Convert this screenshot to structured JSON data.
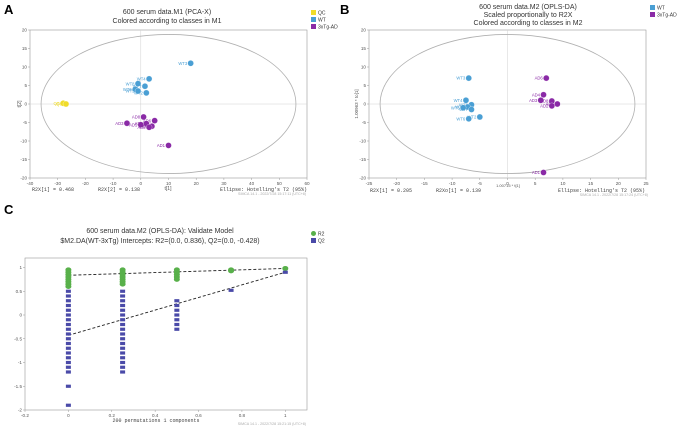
{
  "colors": {
    "qc": "#f0dc2a",
    "wt": "#4a9fd4",
    "ad": "#8a2aa6",
    "r2": "#58b04a",
    "q2": "#4a4aa8",
    "axis": "#6a6a6a",
    "ellipse": "#b0b0b0"
  },
  "chart_data": [
    {
      "panel": "A",
      "type": "scatter",
      "title": "600 serum data.M1 (PCA-X)",
      "subtitle": "Colored according to classes in M1",
      "xlabel": "t[1]",
      "ylabel": "t[2]",
      "xlim": [
        -40,
        60
      ],
      "ylim": [
        -20,
        20
      ],
      "xticks": [
        -40,
        -30,
        -20,
        -10,
        0,
        10,
        20,
        30,
        40,
        50,
        60
      ],
      "yticks": [
        -20,
        -15,
        -10,
        -5,
        0,
        5,
        10,
        15,
        20
      ],
      "legend": [
        {
          "label": "QC",
          "color": "#f0dc2a"
        },
        {
          "label": "WT",
          "color": "#4a9fd4"
        },
        {
          "label": "3xTg-AD",
          "color": "#8a2aa6"
        }
      ],
      "series": [
        {
          "name": "QC",
          "color": "#f0dc2a",
          "points": [
            {
              "label": "QC",
              "x": -28,
              "y": 0.2
            },
            {
              "label": "QC",
              "x": -27,
              "y": 0
            }
          ]
        },
        {
          "name": "WT",
          "color": "#4a9fd4",
          "points": [
            {
              "label": "WT3",
              "x": 18,
              "y": 11
            },
            {
              "label": "WT4",
              "x": 3,
              "y": 6.8
            },
            {
              "label": "WT8",
              "x": -1,
              "y": 5.5
            },
            {
              "label": "WT7",
              "x": 1.5,
              "y": 4.8
            },
            {
              "label": "WT6",
              "x": -2,
              "y": 4
            },
            {
              "label": "WT5",
              "x": -1,
              "y": 3.5
            },
            {
              "label": "WT2",
              "x": 2,
              "y": 3
            }
          ]
        },
        {
          "name": "3xTg-AD",
          "color": "#8a2aa6",
          "points": [
            {
              "label": "AD8",
              "x": 1,
              "y": -3.5
            },
            {
              "label": "AD6",
              "x": 5,
              "y": -4.5
            },
            {
              "label": "AD4",
              "x": 2,
              "y": -5.3
            },
            {
              "label": "AD3",
              "x": -5,
              "y": -5.2
            },
            {
              "label": "AD5",
              "x": 0,
              "y": -5.6
            },
            {
              "label": "AD7",
              "x": 4,
              "y": -6
            },
            {
              "label": "AD2",
              "x": 3,
              "y": -6.3
            },
            {
              "label": "AD1",
              "x": 10,
              "y": -11.2
            }
          ]
        }
      ],
      "footer_left": "R2X[1] = 0.468",
      "footer_mid": "R2X[2] = 0.138",
      "footer_right": "Ellipse: Hotelling's T2 (95%)",
      "stamp": "SIMCA 14.1 - 2022/7/28 15:17:11 (UTC+8)"
    },
    {
      "panel": "B",
      "type": "scatter",
      "title": "600 serum data.M2 (OPLS-DA)",
      "subtitle": "Scaled proportionally to R2X",
      "subtitle2": "Colored according to classes in M2",
      "xlabel": "1.00715 * t[1]",
      "ylabel": "1.00963 * to[1]",
      "xlim": [
        -25,
        25
      ],
      "ylim": [
        -20,
        20
      ],
      "xticks": [
        -25,
        -20,
        -15,
        -10,
        -5,
        0,
        5,
        10,
        15,
        20,
        25
      ],
      "yticks": [
        -20,
        -15,
        -10,
        -5,
        0,
        5,
        10,
        15,
        20
      ],
      "legend": [
        {
          "label": "WT",
          "color": "#4a9fd4"
        },
        {
          "label": "3xTg-AD",
          "color": "#8a2aa6"
        }
      ],
      "series": [
        {
          "name": "WT",
          "color": "#4a9fd4",
          "points": [
            {
              "label": "WT3",
              "x": -7,
              "y": 7
            },
            {
              "label": "WT4",
              "x": -7.5,
              "y": 1
            },
            {
              "label": "WT8",
              "x": -6.5,
              "y": -0.2
            },
            {
              "label": "WT5",
              "x": -7.2,
              "y": -0.8
            },
            {
              "label": "WT6",
              "x": -8,
              "y": -1
            },
            {
              "label": "WT7",
              "x": -6.5,
              "y": -1.5
            },
            {
              "label": "WT2",
              "x": -5,
              "y": -3.5
            },
            {
              "label": "WT6",
              "x": -7,
              "y": -4
            }
          ]
        },
        {
          "name": "3xTg-AD",
          "color": "#8a2aa6",
          "points": [
            {
              "label": "AD6",
              "x": 7,
              "y": 7
            },
            {
              "label": "AD4",
              "x": 6.5,
              "y": 2.5
            },
            {
              "label": "AD3",
              "x": 6,
              "y": 1
            },
            {
              "label": "AD8",
              "x": 8,
              "y": 0.8
            },
            {
              "label": "AD7",
              "x": 9,
              "y": 0
            },
            {
              "label": "AD2",
              "x": 8,
              "y": -0.5
            },
            {
              "label": "AD1",
              "x": 6.5,
              "y": -18.5
            }
          ]
        }
      ],
      "footer_left": "R2X[1] = 0.205",
      "footer_mid": "R2Xo[1] = 0.139",
      "footer_right": "Ellipse: Hotelling's T2 (95%)",
      "stamp": "SIMCA 14.1 - 2022/7/28 15:17:24 (UTC+8)"
    },
    {
      "panel": "C",
      "type": "scatter",
      "title": "600 serum data.M2 (OPLS-DA): Validate Model",
      "subtitle": "$M2.DA(WT-3xTg) Intercepts: R2=(0.0, 0.836), Q2=(0.0, -0.428)",
      "xlabel": "200 permutations 1 components",
      "xlim": [
        -0.2,
        1.1
      ],
      "ylim": [
        -2,
        1.2
      ],
      "xticks": [
        -0.2,
        0,
        0.2,
        0.4,
        0.6,
        0.8,
        1
      ],
      "yticks": [
        -2,
        -1.5,
        -1,
        -0.5,
        0,
        0.5,
        1
      ],
      "legend": [
        {
          "label": "R2",
          "color": "#58b04a"
        },
        {
          "label": "Q2",
          "color": "#4a4aa8"
        }
      ],
      "series": [
        {
          "name": "R2",
          "color": "#58b04a",
          "points": [
            {
              "x": 0,
              "y": 0.95
            },
            {
              "x": 0,
              "y": 0.9
            },
            {
              "x": 0,
              "y": 0.85
            },
            {
              "x": 0,
              "y": 0.8
            },
            {
              "x": 0,
              "y": 0.75
            },
            {
              "x": 0,
              "y": 0.7
            },
            {
              "x": 0,
              "y": 0.65
            },
            {
              "x": 0,
              "y": 0.6
            },
            {
              "x": 0.25,
              "y": 0.95
            },
            {
              "x": 0.25,
              "y": 0.9
            },
            {
              "x": 0.25,
              "y": 0.85
            },
            {
              "x": 0.25,
              "y": 0.8
            },
            {
              "x": 0.25,
              "y": 0.75
            },
            {
              "x": 0.25,
              "y": 0.7
            },
            {
              "x": 0.25,
              "y": 0.65
            },
            {
              "x": 0.5,
              "y": 0.95
            },
            {
              "x": 0.5,
              "y": 0.9
            },
            {
              "x": 0.5,
              "y": 0.85
            },
            {
              "x": 0.5,
              "y": 0.8
            },
            {
              "x": 0.5,
              "y": 0.75
            },
            {
              "x": 0.75,
              "y": 0.95
            },
            {
              "x": 0.75,
              "y": 0.93
            },
            {
              "x": 1,
              "y": 0.98
            }
          ]
        },
        {
          "name": "Q2",
          "color": "#4a4aa8",
          "points": [
            {
              "x": 0,
              "y": 0.5
            },
            {
              "x": 0,
              "y": 0.4
            },
            {
              "x": 0,
              "y": 0.3
            },
            {
              "x": 0,
              "y": 0.2
            },
            {
              "x": 0,
              "y": 0.1
            },
            {
              "x": 0,
              "y": 0
            },
            {
              "x": 0,
              "y": -0.1
            },
            {
              "x": 0,
              "y": -0.2
            },
            {
              "x": 0,
              "y": -0.3
            },
            {
              "x": 0,
              "y": -0.4
            },
            {
              "x": 0,
              "y": -0.5
            },
            {
              "x": 0,
              "y": -0.6
            },
            {
              "x": 0,
              "y": -0.7
            },
            {
              "x": 0,
              "y": -0.8
            },
            {
              "x": 0,
              "y": -0.9
            },
            {
              "x": 0,
              "y": -1
            },
            {
              "x": 0,
              "y": -1.1
            },
            {
              "x": 0,
              "y": -1.2
            },
            {
              "x": 0,
              "y": -1.5
            },
            {
              "x": 0,
              "y": -1.9
            },
            {
              "x": 0.25,
              "y": 0.5
            },
            {
              "x": 0.25,
              "y": 0.4
            },
            {
              "x": 0.25,
              "y": 0.3
            },
            {
              "x": 0.25,
              "y": 0.2
            },
            {
              "x": 0.25,
              "y": 0.1
            },
            {
              "x": 0.25,
              "y": 0
            },
            {
              "x": 0.25,
              "y": -0.1
            },
            {
              "x": 0.25,
              "y": -0.2
            },
            {
              "x": 0.25,
              "y": -0.3
            },
            {
              "x": 0.25,
              "y": -0.4
            },
            {
              "x": 0.25,
              "y": -0.5
            },
            {
              "x": 0.25,
              "y": -0.6
            },
            {
              "x": 0.25,
              "y": -0.7
            },
            {
              "x": 0.25,
              "y": -0.8
            },
            {
              "x": 0.25,
              "y": -0.9
            },
            {
              "x": 0.25,
              "y": -1
            },
            {
              "x": 0.25,
              "y": -1.1
            },
            {
              "x": 0.25,
              "y": -1.2
            },
            {
              "x": 0.5,
              "y": 0.3
            },
            {
              "x": 0.5,
              "y": 0.2
            },
            {
              "x": 0.5,
              "y": 0.1
            },
            {
              "x": 0.5,
              "y": 0
            },
            {
              "x": 0.5,
              "y": -0.1
            },
            {
              "x": 0.5,
              "y": -0.2
            },
            {
              "x": 0.5,
              "y": -0.3
            },
            {
              "x": 0.75,
              "y": 0.52
            },
            {
              "x": 1,
              "y": 0.9
            }
          ]
        }
      ],
      "lines": [
        {
          "name": "R2 regression",
          "from": [
            0,
            0.836
          ],
          "to": [
            1,
            0.98
          ]
        },
        {
          "name": "Q2 regression",
          "from": [
            0,
            -0.428
          ],
          "to": [
            1,
            0.9
          ]
        }
      ],
      "stamp": "SIMCA 14.1 - 2022/7/28 15:21:15 (UTC+8)"
    }
  ]
}
